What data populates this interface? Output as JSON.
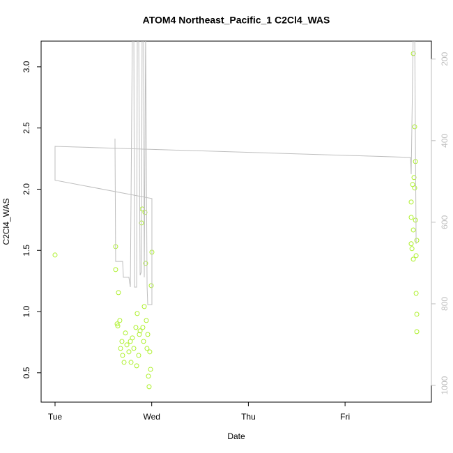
{
  "chart_data": {
    "type": "scatter",
    "title": "ATOM4 Northeast_Pacific_1 C2Cl4_WAS",
    "x_label": "Date",
    "y_label": "C2Cl4_WAS",
    "xlim": [
      -0.144,
      3.893
    ],
    "xticks": [
      {
        "value": 0,
        "label": "Tue"
      },
      {
        "value": 1,
        "label": "Wed"
      },
      {
        "value": 2,
        "label": "Thu"
      },
      {
        "value": 3,
        "label": "Fri"
      }
    ],
    "ylim": [
      0.26,
      3.21
    ],
    "yticks": [
      0.5,
      {
        "value": 1,
        "label": "1.0"
      },
      1.5,
      {
        "value": 2,
        "label": "2.0"
      },
      2.5,
      {
        "value": 3,
        "label": "3.0"
      }
    ],
    "y2lim": [
      1041,
      156
    ],
    "y2ticks": [
      200,
      400,
      600,
      800,
      1000
    ],
    "series": [
      {
        "color": "#adf02a",
        "x": [
          0,
          0.627,
          0.627,
          0.656,
          0.649,
          0.67,
          0.692,
          0.699,
          0.728,
          0.743,
          0.764,
          0.786,
          0.8,
          0.815,
          0.836,
          0.85,
          0.865,
          0.88,
          0.894,
          0.901,
          0.916,
          0.923,
          0.93,
          0.937,
          0.944,
          0.959,
          0.966,
          0.973,
          0.988,
          1.002,
          0.995,
          0.98,
          0.678,
          0.714,
          0.779,
          0.844,
          0.872,
          0.908,
          0.951,
          0.642,
          3.706,
          3.72,
          3.728,
          3.713,
          3.699,
          3.72,
          3.684,
          3.684,
          3.728,
          3.706,
          3.742,
          3.684,
          3.692,
          3.735,
          3.706,
          3.735,
          3.742,
          3.742
        ],
        "values": [
          1.462,
          1.531,
          1.343,
          1.155,
          0.882,
          0.927,
          0.756,
          0.642,
          0.825,
          0.728,
          0.671,
          0.585,
          0.785,
          0.699,
          0.87,
          0.984,
          0.642,
          0.842,
          1.724,
          1.838,
          0.756,
          1.041,
          1.81,
          1.394,
          0.927,
          0.813,
          0.472,
          0.386,
          0.528,
          1.485,
          1.212,
          0.671,
          0.699,
          0.585,
          0.756,
          0.557,
          0.813,
          0.87,
          0.699,
          0.899,
          3.108,
          2.51,
          2.226,
          2.095,
          2.038,
          2.01,
          1.895,
          1.77,
          1.747,
          1.667,
          1.582,
          1.554,
          1.514,
          1.457,
          1.428,
          1.149,
          0.978,
          0.836
        ]
      },
      {
        "color": "#bebebe",
        "axis": "y2",
        "line": true,
        "x": [
          0.62,
          0.627,
          0.699,
          0.707,
          0.764,
          0.779,
          0.8,
          0.815,
          0.822,
          0.844,
          0.851,
          0.865,
          0.88,
          0.894,
          0.901,
          0.916,
          0.923,
          0.937,
          0.952,
          0.959,
          1.002,
          1.002,
          0,
          0,
          3.677,
          3.684,
          3.706,
          3.72,
          3.735
        ],
        "values": [
          395,
          696,
          696,
          735,
          735,
          759,
          123,
          123,
          759,
          759,
          123,
          123,
          730,
          721,
          123,
          123,
          735,
          123,
          756,
          802,
          802,
          542,
          497,
          414,
          441,
          482,
          123,
          123,
          653
        ]
      }
    ]
  }
}
